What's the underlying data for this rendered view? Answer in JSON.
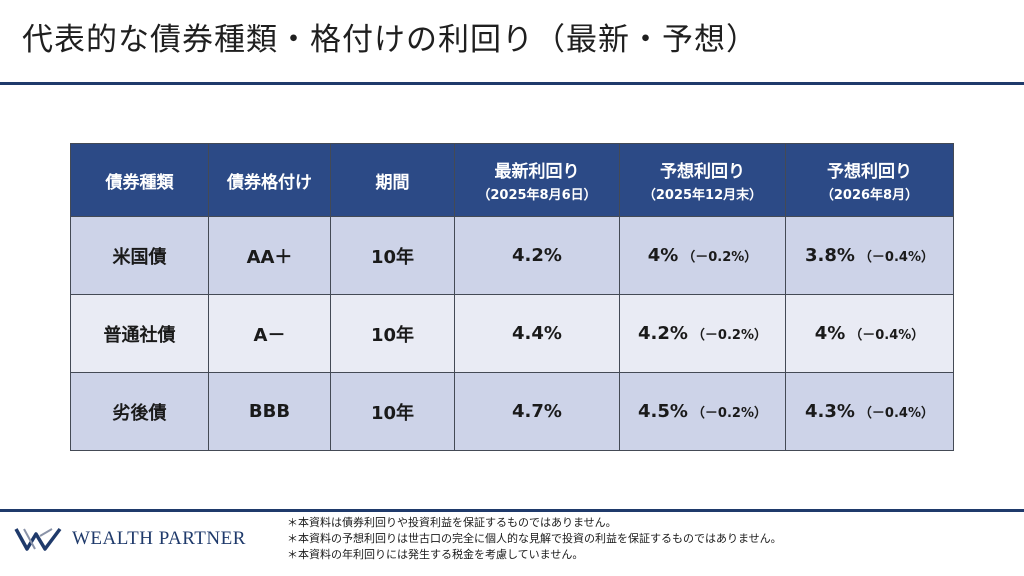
{
  "page": {
    "title": "代表的な債券種類・格付けの利回り（最新・予想）"
  },
  "table": {
    "headers": {
      "type": "債券種類",
      "rating": "債券格付け",
      "term": "期間",
      "latest_main": "最新利回り",
      "latest_sub": "（2025年8月6日）",
      "f1_main": "予想利回り",
      "f1_sub": "（2025年12月末）",
      "f2_main": "予想利回り",
      "f2_sub": "（2026年8月）"
    },
    "rows": [
      {
        "type": "米国債",
        "rating": "AA＋",
        "term": "10年",
        "latest": "4.2%",
        "f1": "4%",
        "f1_diff": "（－0.2%）",
        "f2": "3.8%",
        "f2_diff": "（－0.4%）"
      },
      {
        "type": "普通社債",
        "rating": "A－",
        "term": "10年",
        "latest": "4.4%",
        "f1": "4.2%",
        "f1_diff": "（－0.2%）",
        "f2": "4%",
        "f2_diff": "（－0.4%）"
      },
      {
        "type": "劣後債",
        "rating": "BBB",
        "term": "10年",
        "latest": "4.7%",
        "f1": "4.5%",
        "f1_diff": "（－0.2%）",
        "f2": "4.3%",
        "f2_diff": "（－0.4%）"
      }
    ]
  },
  "footer": {
    "brand": "WEALTH PARTNER",
    "notes": [
      "＊本資料は債券利回りや投資利益を保証するものではありません。",
      "＊本資料の予想利回りは世古口の完全に個人的な見解で投資の利益を保証するものではありません。",
      "＊本資料の年利回りには発生する税金を考慮していません。"
    ]
  },
  "colors": {
    "header_bg": "#2c4a86",
    "row_odd": "#cdd3e8",
    "row_even": "#e9ebf4",
    "forecast_text": "#e8141b",
    "rule": "#1f3a6b"
  },
  "icons": {
    "logo": "wealth-partner-w-logo"
  }
}
